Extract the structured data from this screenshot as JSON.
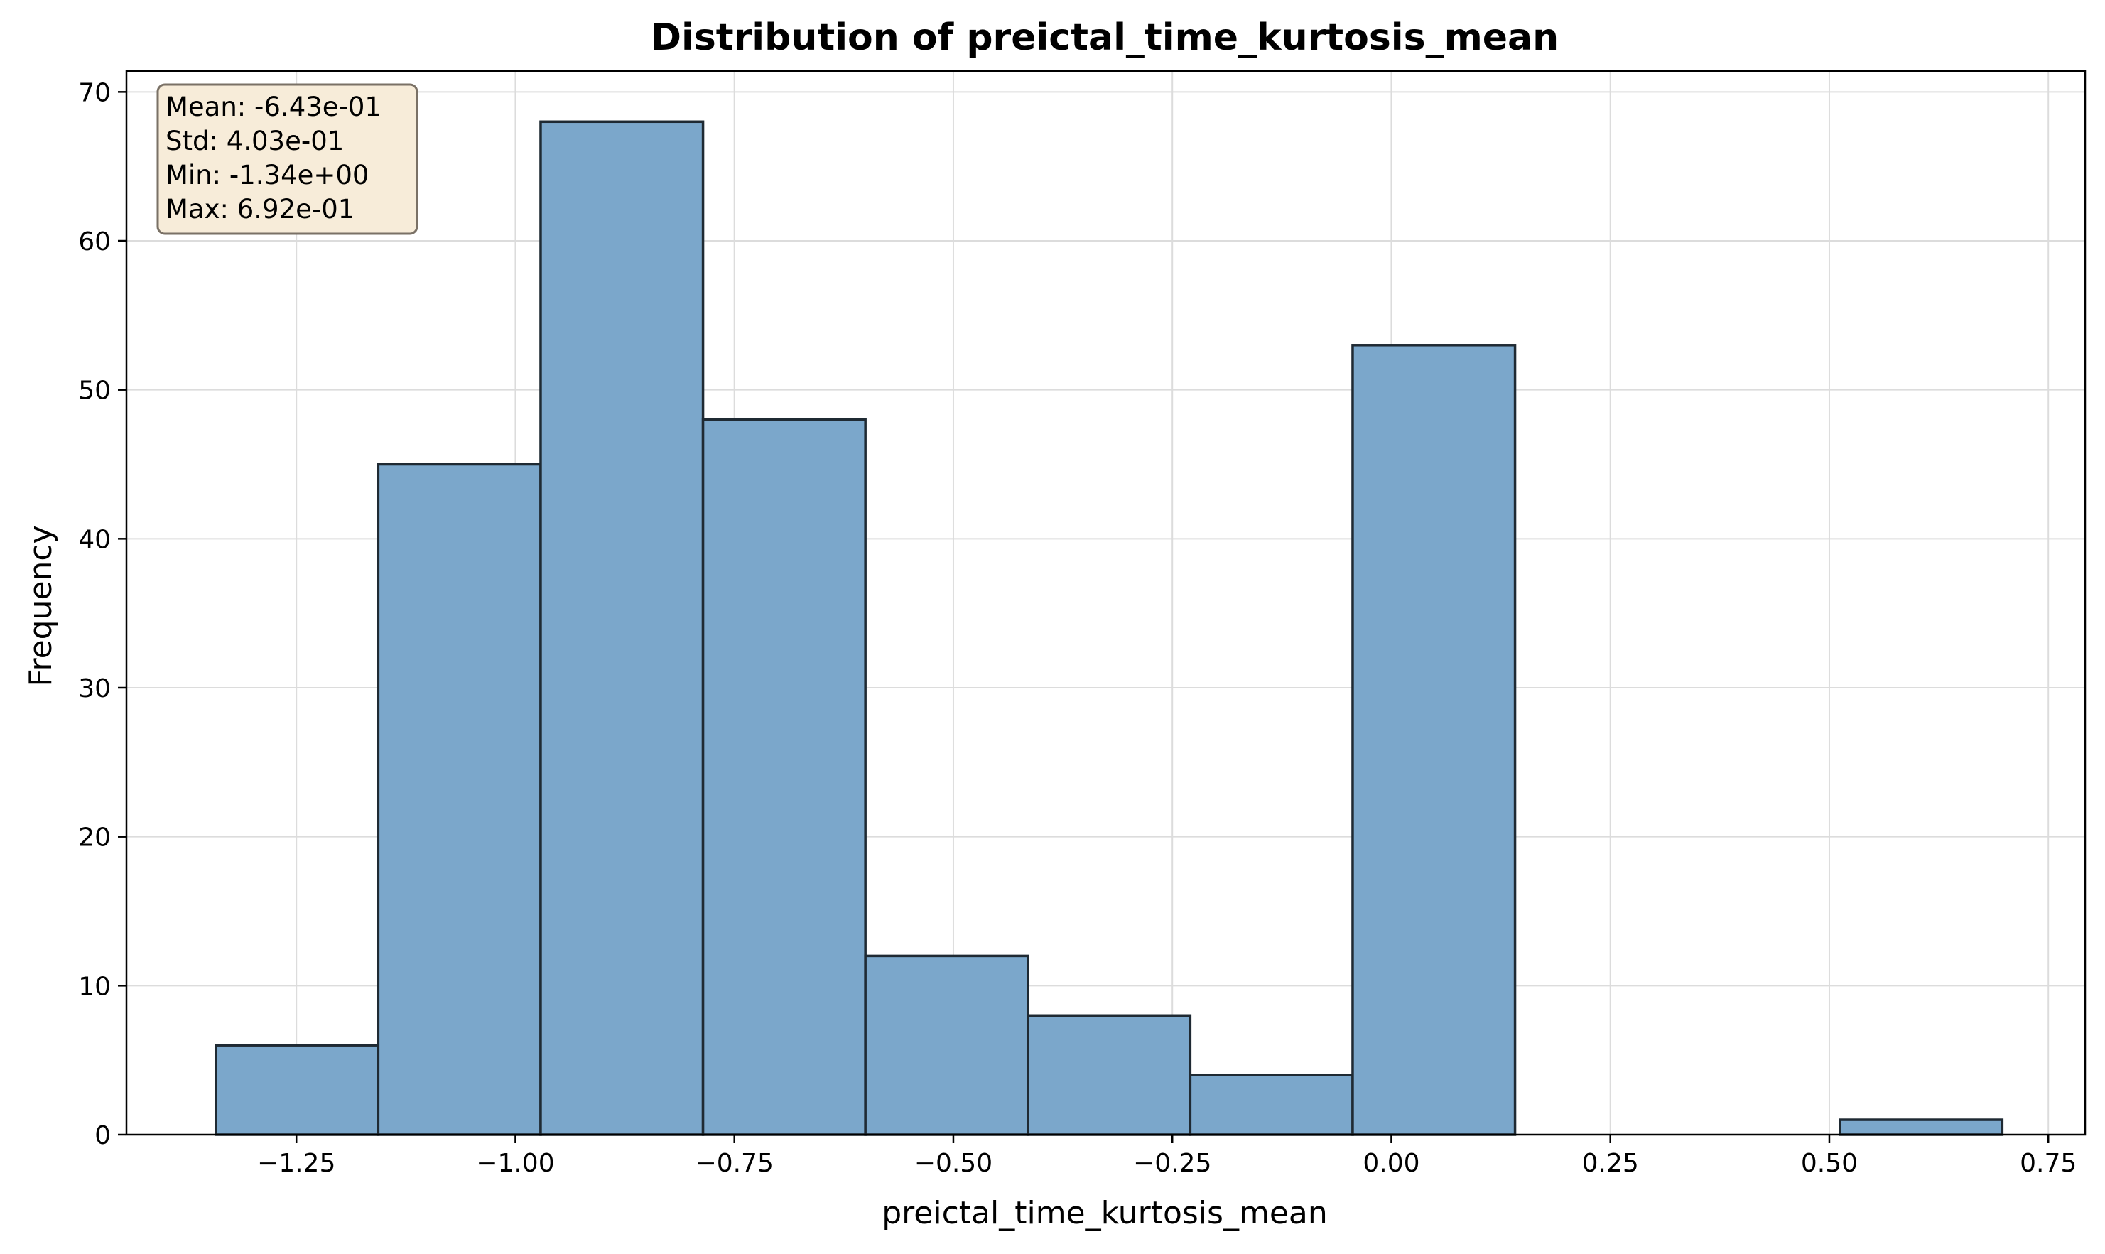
{
  "chart_data": {
    "type": "bar",
    "title": "Distribution of preictal_time_kurtosis_mean",
    "xlabel": "preictal_time_kurtosis_mean",
    "ylabel": "Frequency",
    "xlim": [
      -1.444,
      0.792
    ],
    "ylim": [
      0,
      71.4
    ],
    "grid": true,
    "x_ticks": [
      {
        "value": -1.25,
        "label": "−1.25"
      },
      {
        "value": -1.0,
        "label": "−1.00"
      },
      {
        "value": -0.75,
        "label": "−0.75"
      },
      {
        "value": -0.5,
        "label": "−0.50"
      },
      {
        "value": -0.25,
        "label": "−0.25"
      },
      {
        "value": 0.0,
        "label": "0.00"
      },
      {
        "value": 0.25,
        "label": "0.25"
      },
      {
        "value": 0.5,
        "label": "0.50"
      },
      {
        "value": 0.75,
        "label": "0.75"
      }
    ],
    "y_ticks": [
      {
        "value": 0,
        "label": "0"
      },
      {
        "value": 10,
        "label": "10"
      },
      {
        "value": 20,
        "label": "20"
      },
      {
        "value": 30,
        "label": "30"
      },
      {
        "value": 40,
        "label": "40"
      },
      {
        "value": 50,
        "label": "50"
      },
      {
        "value": 60,
        "label": "60"
      },
      {
        "value": 70,
        "label": "70"
      }
    ],
    "bins": [
      {
        "x0": -1.342,
        "x1": -1.1566,
        "count": 6
      },
      {
        "x0": -1.1566,
        "x1": -0.9712,
        "count": 45
      },
      {
        "x0": -0.9712,
        "x1": -0.7858,
        "count": 68
      },
      {
        "x0": -0.7858,
        "x1": -0.6004,
        "count": 48
      },
      {
        "x0": -0.6004,
        "x1": -0.415,
        "count": 12
      },
      {
        "x0": -0.415,
        "x1": -0.2296,
        "count": 8
      },
      {
        "x0": -0.2296,
        "x1": -0.0442,
        "count": 4
      },
      {
        "x0": -0.0442,
        "x1": 0.1412,
        "count": 53
      },
      {
        "x0": 0.1412,
        "x1": 0.3266,
        "count": 0
      },
      {
        "x0": 0.3266,
        "x1": 0.512,
        "count": 0
      },
      {
        "x0": 0.512,
        "x1": 0.6974,
        "count": 1
      }
    ],
    "stats_box": {
      "lines": [
        "Mean: -6.43e-01",
        "Std: 4.03e-01",
        "Min: -1.34e+00",
        "Max: 6.92e-01"
      ]
    },
    "colors": {
      "bar_fill": "#7ba7cb",
      "bar_edge": "#1f2a33",
      "grid": "#dcdcdc",
      "stats_box_fill": "#f7ecd9",
      "stats_box_edge": "#7a7166"
    }
  }
}
